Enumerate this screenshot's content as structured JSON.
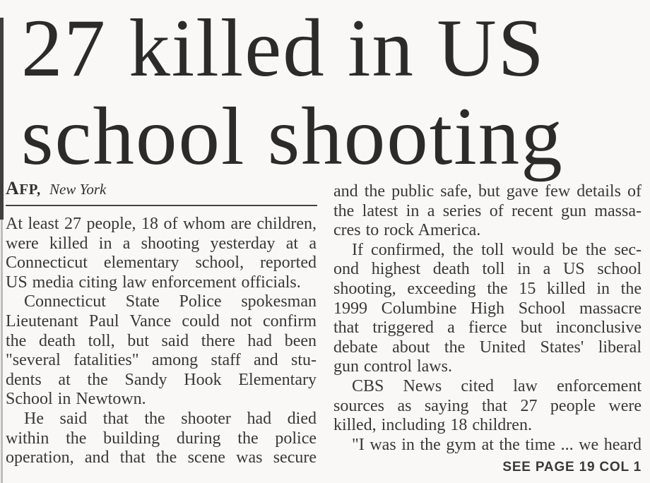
{
  "headline": {
    "line1": "27 killed in US",
    "line2": "school shooting"
  },
  "byline": {
    "agency": "AFP,",
    "location": "New York"
  },
  "columns": {
    "left": {
      "paragraphs": [
        {
          "indent": false,
          "justify_last": false,
          "lines": [
            "At least 27 people, 18 of whom are children,",
            "were killed in a shooting yesterday at a",
            "Connecticut elementary school, reported",
            "US media citing law enforcement officials."
          ]
        },
        {
          "indent": true,
          "justify_last": false,
          "lines": [
            "Connecticut State Police spokesman",
            "Lieutenant Paul Vance could not confirm",
            "the death toll, but said there had been",
            "\"several fatalities\" among staff and stu-",
            "dents at the Sandy Hook Elementary",
            "School in Newtown."
          ]
        },
        {
          "indent": true,
          "justify_last": true,
          "lines": [
            "He said that the shooter had died",
            "within the building during the police",
            "operation, and that the scene was secure"
          ]
        }
      ]
    },
    "right": {
      "paragraphs": [
        {
          "indent": false,
          "justify_last": false,
          "lines": [
            "and the public safe, but gave few details of",
            "the latest in a series of recent gun massa-",
            "cres to rock America."
          ]
        },
        {
          "indent": true,
          "justify_last": false,
          "lines": [
            "If confirmed, the toll would be the sec-",
            "ond highest death toll in a US school",
            "shooting, exceeding the 15 killed in the",
            "1999 Columbine High School massacre",
            "that triggered a fierce but inconclusive",
            "debate about the United States' liberal",
            "gun control laws."
          ]
        },
        {
          "indent": true,
          "justify_last": false,
          "lines": [
            "CBS News cited law enforcement",
            "sources as saying that 27 people were",
            "killed, including 18 children."
          ]
        },
        {
          "indent": true,
          "justify_last": true,
          "lines": [
            "\"I was in the gym at the time ... we heard"
          ]
        }
      ],
      "continuation": "SEE PAGE 19 COL 1"
    }
  }
}
